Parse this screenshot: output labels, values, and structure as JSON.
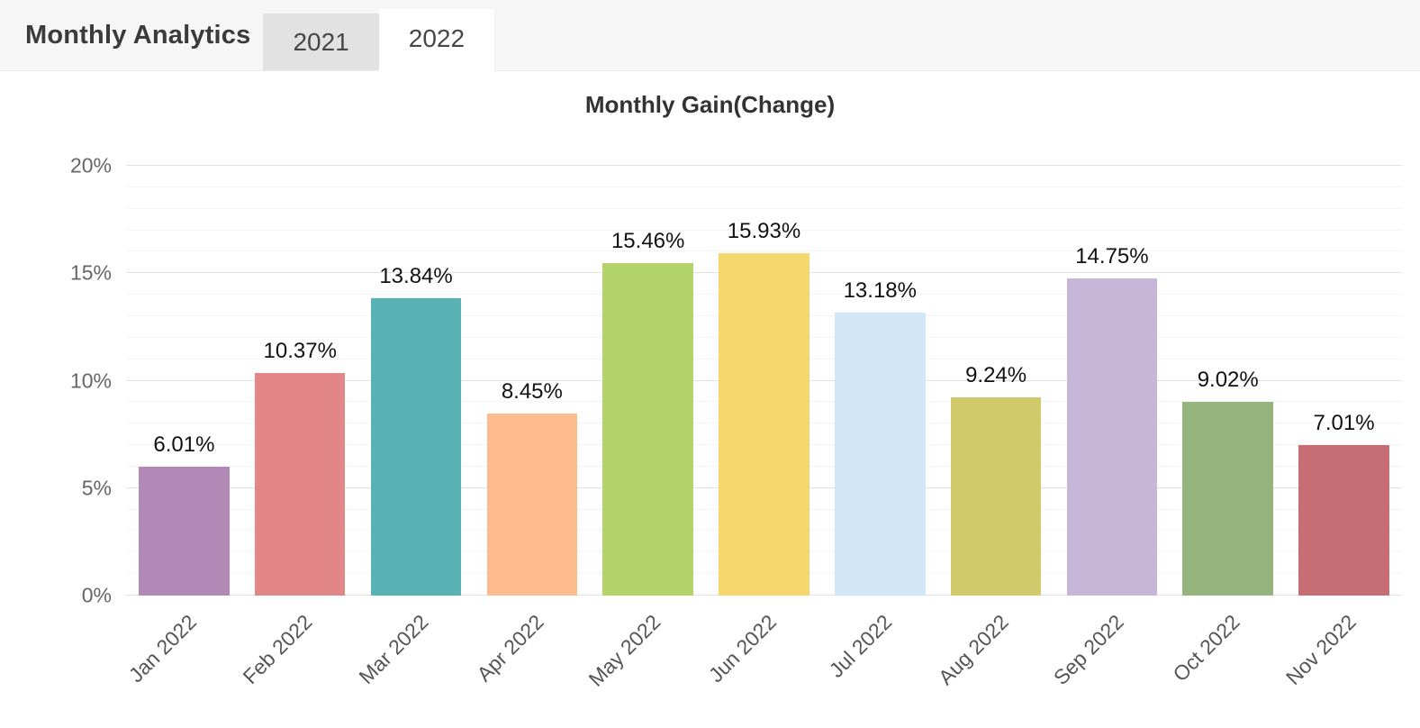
{
  "header": {
    "title": "Monthly Analytics",
    "tabs": [
      {
        "label": "2021",
        "active": false
      },
      {
        "label": "2022",
        "active": true
      }
    ]
  },
  "chart_data": {
    "type": "bar",
    "title": "Monthly Gain(Change)",
    "categories": [
      "Jan 2022",
      "Feb 2022",
      "Mar 2022",
      "Apr 2022",
      "May 2022",
      "Jun 2022",
      "Jul 2022",
      "Aug 2022",
      "Sep 2022",
      "Oct 2022",
      "Nov 2022"
    ],
    "values": [
      6.01,
      10.37,
      13.84,
      8.45,
      15.46,
      15.93,
      13.18,
      9.24,
      14.75,
      9.02,
      7.01
    ],
    "value_labels": [
      "6.01%",
      "10.37%",
      "13.84%",
      "8.45%",
      "15.46%",
      "15.93%",
      "13.18%",
      "9.24%",
      "14.75%",
      "9.02%",
      "7.01%"
    ],
    "bar_colors": [
      "#b289b6",
      "#e38687",
      "#58b2b3",
      "#fdba8c",
      "#b3d46b",
      "#f5d76e",
      "#d3e6f8",
      "#d0ca6c",
      "#c6b7d9",
      "#95b37d",
      "#c66e73"
    ],
    "xlabel": "",
    "ylabel": "",
    "ylim": [
      0,
      20
    ],
    "y_major_step": 5,
    "y_minor_step": 1,
    "y_tick_labels": [
      "0%",
      "5%",
      "10%",
      "15%",
      "20%"
    ],
    "grid": true,
    "legend": false,
    "grid_major_color": "#e2e2e2",
    "grid_minor_color": "#f4f4f4"
  }
}
